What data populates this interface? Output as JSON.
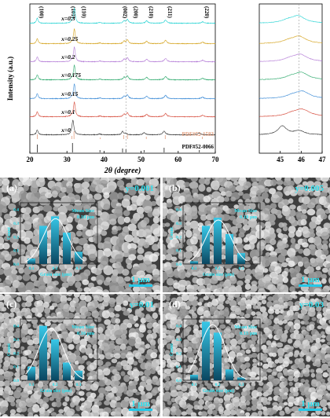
{
  "xrd": {
    "xlabel": "2θ (degree)",
    "ylabel": "Intensity (a.u.)",
    "xlim": [
      20,
      70
    ],
    "xticks": [
      20,
      30,
      40,
      50,
      60,
      70
    ],
    "hkl": [
      {
        "label": "(100)",
        "x": 22.0
      },
      {
        "label": "(101)",
        "x": 31.3
      },
      {
        "label": "(110)",
        "x": 32.8
      },
      {
        "label": "(002)",
        "x": 45.3
      },
      {
        "label": "(200)",
        "x": 46.8
      },
      {
        "label": "(210)",
        "x": 51.6
      },
      {
        "label": "(211)",
        "x": 56.6
      },
      {
        "label": "(220)",
        "x": 66.6
      }
    ],
    "dashed_x": 45.9,
    "references": [
      "PDF#52-1583",
      "PDF#52-0066"
    ],
    "series": [
      {
        "name": "x=0.3",
        "color": "#2ad4d4"
      },
      {
        "name": "x=0.25",
        "color": "#d4a21a"
      },
      {
        "name": "x=0.2",
        "color": "#b37ad6"
      },
      {
        "name": "x=0.175",
        "color": "#2aa86a"
      },
      {
        "name": "x=0.15",
        "color": "#3a8ad6"
      },
      {
        "name": "x=0.1",
        "color": "#d64a3a"
      },
      {
        "name": "x=0",
        "color": "#333333"
      }
    ]
  },
  "zoom": {
    "xlim": [
      44,
      47
    ],
    "xticks": [
      45,
      46,
      47
    ],
    "dashed_x": 45.9
  },
  "sem": [
    {
      "letter": "(a)",
      "tag": "y=0.001",
      "mean_label": "Mean Size",
      "mean_value": "0.18 μm",
      "scale": "1 μm",
      "values": [
        0.04,
        0.28,
        0.35,
        0.23,
        0.09
      ]
    },
    {
      "letter": "(b)",
      "tag": "y=0.005",
      "mean_label": "Mean Size",
      "mean_value": "0.18 μm",
      "scale": "1 μm",
      "values": [
        0.02,
        0.28,
        0.34,
        0.22,
        0.08
      ]
    },
    {
      "letter": "(c)",
      "tag": "y=0.01",
      "mean_label": "Mean Size",
      "mean_value": "0.16 μm",
      "scale": "1 μm",
      "values": [
        0.1,
        0.4,
        0.3,
        0.13,
        0.07
      ]
    },
    {
      "letter": "(d)",
      "tag": "y=0.03",
      "mean_label": "Mean Size",
      "mean_value": "0.15 μm",
      "scale": "1 μm",
      "values": [
        0.04,
        0.43,
        0.35,
        0.08,
        0.02
      ]
    }
  ],
  "inset": {
    "xlabel": "Grain size (μm)",
    "ylabel": "Count",
    "yticks": [
      "0.0",
      "0.1",
      "0.2",
      "0.3",
      "0.4"
    ],
    "xticks": [
      "0.1",
      "0.2",
      "0.3"
    ]
  },
  "colors": {
    "scalebar": "#25c8e8",
    "label": "#2fe0ee",
    "bar_top": "#38c8e8",
    "bar_bottom": "#0a4660"
  },
  "chart_data": [
    {
      "type": "line",
      "xlabel": "2θ (degree)",
      "ylabel": "Intensity (a.u.)",
      "xlim": [
        20,
        70
      ],
      "series": [
        {
          "name": "x=0.3"
        },
        {
          "name": "x=0.25"
        },
        {
          "name": "x=0.2"
        },
        {
          "name": "x=0.175"
        },
        {
          "name": "x=0.15"
        },
        {
          "name": "x=0.1"
        },
        {
          "name": "x=0"
        }
      ],
      "peak_positions": [
        22.0,
        31.3,
        32.8,
        45.3,
        46.8,
        51.6,
        56.6,
        66.6
      ]
    },
    {
      "type": "line",
      "xlabel": "",
      "xlim": [
        44,
        47
      ]
    },
    {
      "type": "bar",
      "categories": [
        "0.1",
        "0.15",
        "0.2",
        "0.25",
        "0.3"
      ],
      "series": [
        {
          "name": "y=0.001",
          "values": [
            0.04,
            0.28,
            0.35,
            0.23,
            0.09
          ]
        },
        {
          "name": "y=0.005",
          "values": [
            0.02,
            0.28,
            0.34,
            0.22,
            0.08
          ]
        },
        {
          "name": "y=0.01",
          "values": [
            0.1,
            0.4,
            0.3,
            0.13,
            0.07
          ]
        },
        {
          "name": "y=0.03",
          "values": [
            0.04,
            0.43,
            0.35,
            0.08,
            0.02
          ]
        }
      ],
      "xlabel": "Grain size (μm)",
      "ylabel": "Count",
      "ylim": [
        0,
        0.45
      ]
    }
  ]
}
